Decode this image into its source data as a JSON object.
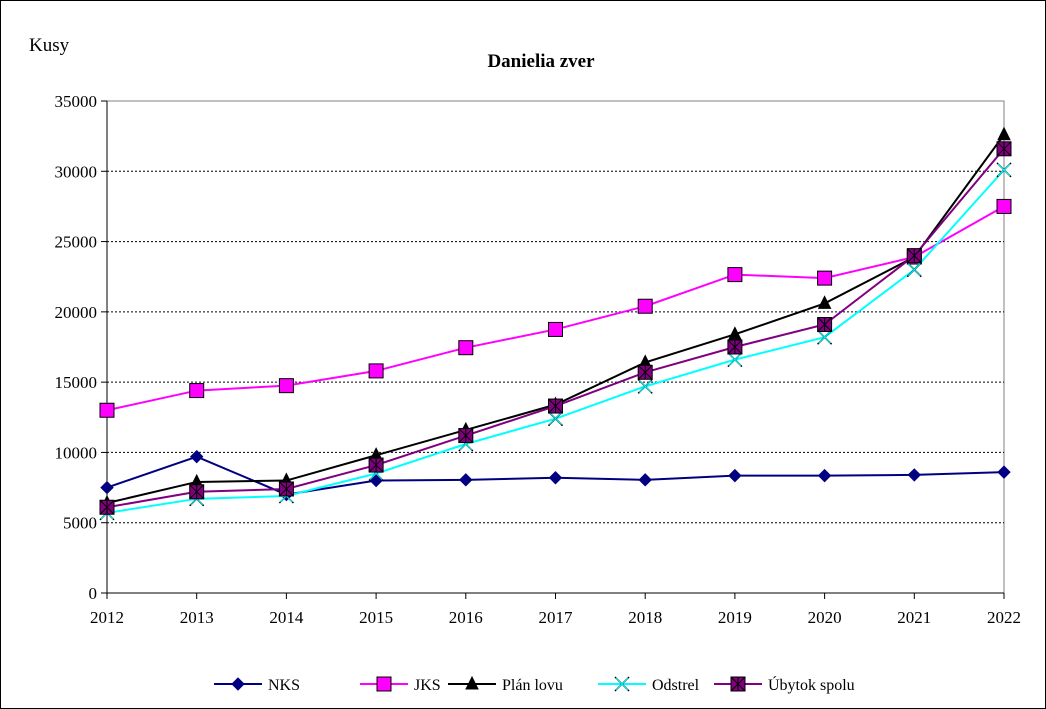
{
  "chart_data": {
    "type": "line",
    "title": "Danielia zver",
    "ylabel": "Kusy",
    "xlabel": "",
    "categories": [
      "2012",
      "2013",
      "2014",
      "2015",
      "2016",
      "2017",
      "2018",
      "2019",
      "2020",
      "2021",
      "2022"
    ],
    "ylim": [
      0,
      35000
    ],
    "yticks": [
      0,
      5000,
      10000,
      15000,
      20000,
      25000,
      30000,
      35000
    ],
    "grid": "horizontal dashed",
    "legend_position": "bottom",
    "series": [
      {
        "name": "NKS",
        "color": "#000080",
        "marker": "diamond",
        "values": [
          7500,
          9700,
          7000,
          8000,
          8050,
          8200,
          8050,
          8350,
          8350,
          8400,
          8600
        ]
      },
      {
        "name": "JKS",
        "color": "#ff00ff",
        "marker": "square",
        "values": [
          13000,
          14400,
          14750,
          15800,
          17450,
          18750,
          20400,
          22650,
          22400,
          23900,
          27500
        ]
      },
      {
        "name": "Plán lovu",
        "color": "#000000",
        "marker": "triangle",
        "values": [
          6400,
          7900,
          8000,
          9800,
          11600,
          13400,
          16400,
          18400,
          20600,
          23900,
          32600
        ]
      },
      {
        "name": "Odstrel",
        "color": "#00ffff",
        "marker": "x",
        "values": [
          5700,
          6700,
          6900,
          8500,
          10600,
          12400,
          14700,
          16600,
          18200,
          23000,
          30100
        ]
      },
      {
        "name": "Úbytok spolu",
        "color": "#800080",
        "marker": "asterisk-square",
        "values": [
          6100,
          7200,
          7400,
          9100,
          11200,
          13300,
          15700,
          17500,
          19100,
          24000,
          31600
        ]
      }
    ]
  }
}
